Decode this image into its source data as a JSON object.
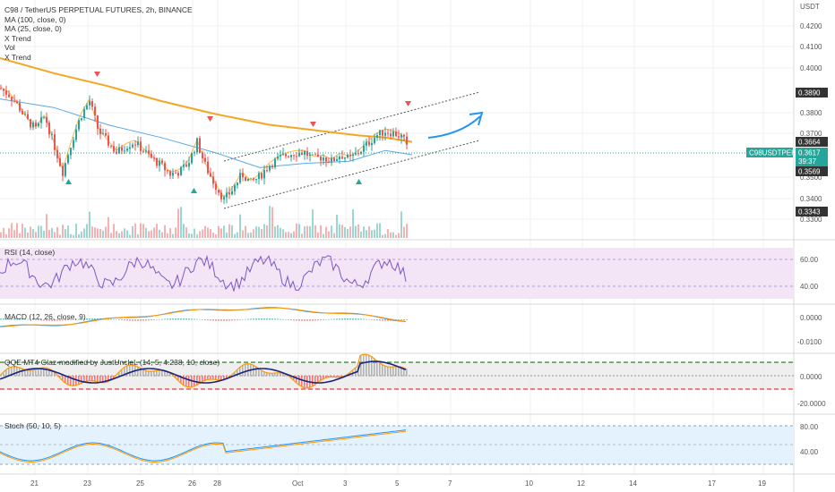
{
  "header": {
    "title": "C98 / TetherUS PERPETUAL FUTURES, 2h, BINANCE",
    "currency": "USDT"
  },
  "legend": {
    "items": [
      "MA (100, close, 0)",
      "MA (25, close, 0)",
      "X Trend",
      "Vol",
      "X Trend"
    ]
  },
  "price_axis": {
    "ticks": [
      "0.4200",
      "0.4100",
      "0.4000",
      "0.3800",
      "0.3700",
      "0.3500",
      "0.3400",
      "0.3300"
    ],
    "badges": {
      "high": "0.3890",
      "ma": "0.3664",
      "symbol": "C98USDTPERP",
      "last": "0.3617",
      "countdown": "39:37",
      "low_ma": "0.3569",
      "low": "0.3343"
    }
  },
  "panes": {
    "rsi": {
      "title": "RSI (14, close)",
      "ticks": [
        "60.00",
        "40.00"
      ]
    },
    "macd": {
      "title": "MACD (12, 26, close, 9)",
      "ticks": [
        "0.0000",
        "-0.0100"
      ]
    },
    "qqe": {
      "title": "QQE MT4 Glaz-modified by JustUncleL (14, 5, 4.238, 10, close)",
      "ticks": [
        "0.0000",
        "-20.0000"
      ]
    },
    "stoch": {
      "title": "Stoch (50, 10, 5)",
      "ticks": [
        "80.00",
        "40.00"
      ]
    }
  },
  "time_axis": {
    "labels": [
      "21",
      "23",
      "25",
      "26",
      "28",
      "Oct",
      "3",
      "5",
      "7",
      "10",
      "12",
      "14",
      "17",
      "19"
    ]
  },
  "colors": {
    "up": "#26a69a",
    "down": "#ef5350",
    "ma100": "#f5a623",
    "ma25": "#2196f3",
    "grid": "#eeeeee",
    "rsi_bg": "#f3e5f5",
    "stoch_bg": "#e3f2fd"
  },
  "chart_data": {
    "type": "line",
    "series_note": "",
    "price_points": [
      [
        0,
        0.391
      ],
      [
        10,
        0.388
      ],
      [
        20,
        0.383
      ],
      [
        30,
        0.376
      ],
      [
        40,
        0.372
      ],
      [
        50,
        0.378
      ],
      [
        60,
        0.365
      ],
      [
        70,
        0.352
      ],
      [
        80,
        0.366
      ],
      [
        90,
        0.378
      ],
      [
        100,
        0.385
      ],
      [
        110,
        0.371
      ],
      [
        120,
        0.366
      ],
      [
        130,
        0.361
      ],
      [
        140,
        0.364
      ],
      [
        150,
        0.366
      ],
      [
        160,
        0.362
      ],
      [
        170,
        0.358
      ],
      [
        180,
        0.355
      ],
      [
        190,
        0.351
      ],
      [
        200,
        0.352
      ],
      [
        210,
        0.356
      ],
      [
        220,
        0.366
      ],
      [
        230,
        0.354
      ],
      [
        240,
        0.346
      ],
      [
        250,
        0.339
      ],
      [
        260,
        0.344
      ],
      [
        270,
        0.351
      ],
      [
        280,
        0.347
      ],
      [
        290,
        0.35
      ],
      [
        300,
        0.355
      ],
      [
        310,
        0.358
      ],
      [
        320,
        0.36
      ],
      [
        330,
        0.361
      ],
      [
        340,
        0.361
      ],
      [
        350,
        0.358
      ],
      [
        360,
        0.359
      ],
      [
        370,
        0.357
      ],
      [
        380,
        0.36
      ],
      [
        390,
        0.358
      ],
      [
        400,
        0.361
      ],
      [
        410,
        0.365
      ],
      [
        420,
        0.369
      ],
      [
        430,
        0.371
      ],
      [
        440,
        0.37
      ],
      [
        450,
        0.368
      ],
      [
        455,
        0.362
      ]
    ],
    "ma100_points": [
      [
        0,
        0.405
      ],
      [
        60,
        0.398
      ],
      [
        120,
        0.392
      ],
      [
        180,
        0.385
      ],
      [
        240,
        0.379
      ],
      [
        300,
        0.374
      ],
      [
        360,
        0.371
      ],
      [
        400,
        0.369
      ],
      [
        430,
        0.368
      ],
      [
        460,
        0.366
      ]
    ],
    "ma25_points": [
      [
        0,
        0.386
      ],
      [
        60,
        0.382
      ],
      [
        120,
        0.374
      ],
      [
        180,
        0.368
      ],
      [
        240,
        0.361
      ],
      [
        290,
        0.354
      ],
      [
        340,
        0.356
      ],
      [
        390,
        0.357
      ],
      [
        430,
        0.362
      ],
      [
        460,
        0.36
      ]
    ]
  }
}
